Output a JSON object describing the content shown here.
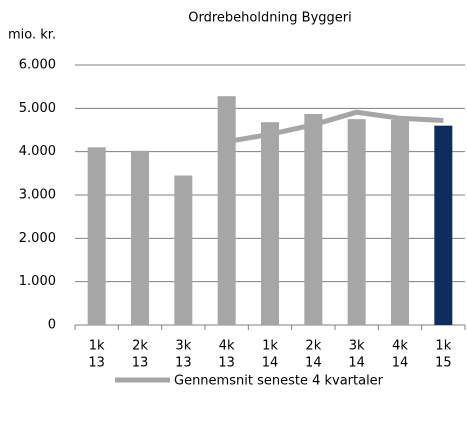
{
  "chart_data": {
    "type": "bar+line",
    "title": "Ordrebeholdning Byggeri",
    "y_axis_label": "mio. kr.",
    "categories": [
      [
        "1k",
        "13"
      ],
      [
        "2k",
        "13"
      ],
      [
        "3k",
        "13"
      ],
      [
        "4k",
        "13"
      ],
      [
        "1k",
        "14"
      ],
      [
        "2k",
        "14"
      ],
      [
        "3k",
        "14"
      ],
      [
        "4k",
        "14"
      ],
      [
        "1k",
        "15"
      ]
    ],
    "series": [
      {
        "type": "bar",
        "colors": [
          "#a6a6a6",
          "#a6a6a6",
          "#a6a6a6",
          "#a6a6a6",
          "#a6a6a6",
          "#a6a6a6",
          "#a6a6a6",
          "#a6a6a6",
          "#0c2d5e"
        ],
        "values": [
          4100,
          4020,
          3450,
          5280,
          4680,
          4870,
          4750,
          4730,
          4600
        ]
      },
      {
        "type": "line",
        "name": "Gennemsnit seneste 4 kvartaler",
        "color": "#a6a6a6",
        "values": [
          null,
          null,
          null,
          4230,
          4400,
          4620,
          4910,
          4770,
          4720
        ]
      }
    ],
    "ylim": [
      0,
      6000
    ],
    "yticks": [
      {
        "value": 0,
        "label": "0"
      },
      {
        "value": 1000,
        "label": "1.000"
      },
      {
        "value": 2000,
        "label": "2.000"
      },
      {
        "value": 3000,
        "label": "3.000"
      },
      {
        "value": 4000,
        "label": "4.000"
      },
      {
        "value": 5000,
        "label": "5.000"
      },
      {
        "value": 6000,
        "label": "6.000"
      }
    ],
    "grid": true,
    "legend": "bottom"
  }
}
